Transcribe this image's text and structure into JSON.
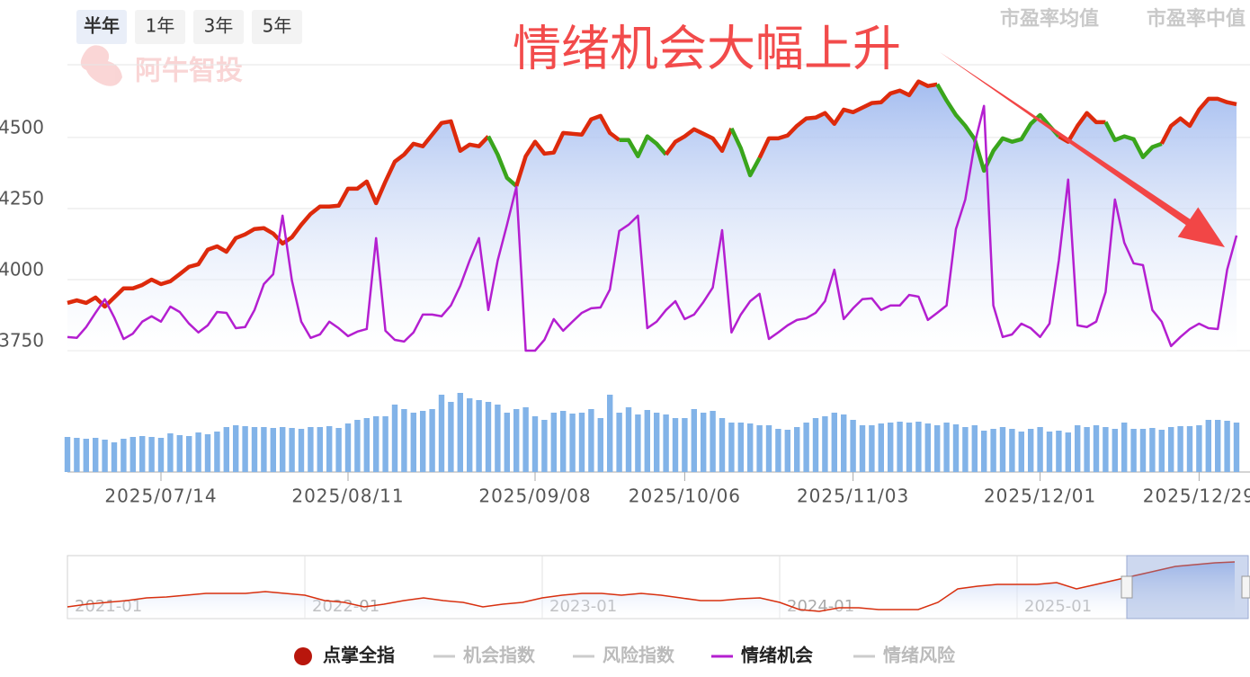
{
  "controls": {
    "periods": [
      "半年",
      "1年",
      "3年",
      "5年"
    ],
    "active_period": 0,
    "tabs": [
      "市盈率均值",
      "市盈率中值"
    ]
  },
  "watermark": "阿牛智投",
  "chart_data": [
    {
      "type": "line",
      "annotation": "情绪机会大幅上升",
      "ylim": [
        3750,
        4756
      ],
      "yticks": [
        3750,
        4000,
        4250,
        4500
      ],
      "grid": true,
      "categories": [
        null,
        null,
        null,
        null,
        null,
        null,
        null,
        null,
        null,
        null,
        "2025/07/14",
        null,
        null,
        null,
        null,
        null,
        null,
        null,
        null,
        null,
        null,
        null,
        null,
        null,
        null,
        null,
        null,
        null,
        null,
        null,
        "2025/08/11",
        null,
        null,
        null,
        null,
        null,
        null,
        null,
        null,
        null,
        null,
        null,
        null,
        null,
        null,
        null,
        null,
        null,
        null,
        null,
        "2025/09/08",
        null,
        null,
        null,
        null,
        null,
        null,
        null,
        null,
        null,
        null,
        null,
        null,
        null,
        null,
        null,
        "2025/10/06",
        null,
        null,
        null,
        null,
        null,
        null,
        null,
        null,
        null,
        null,
        null,
        null,
        null,
        null,
        null,
        null,
        null,
        "2025/11/03",
        null,
        null,
        null,
        null,
        null,
        null,
        null,
        null,
        null,
        null,
        null,
        null,
        null,
        null,
        null,
        null,
        null,
        null,
        null,
        "2025/12/01",
        null,
        null,
        null,
        null,
        null,
        null,
        null,
        null,
        null,
        null,
        null,
        null,
        null,
        null,
        null,
        null,
        "2025/12/29",
        null,
        null,
        null,
        null
      ],
      "series": [
        {
          "name": "点掌全指",
          "color": "#dd2a0c",
          "down_color": "#3aa51c",
          "fill": "#9fb9ef",
          "trend": [
            "u",
            "u",
            "u",
            "u",
            "u",
            "u",
            "u",
            "u",
            "u",
            "u",
            "u",
            "u",
            "u",
            "u",
            "u",
            "u",
            "u",
            "u",
            "u",
            "u",
            "u",
            "u",
            "u",
            "u",
            "u",
            "u",
            "u",
            "u",
            "u",
            "u",
            "u",
            "u",
            "u",
            "u",
            "u",
            "u",
            "u",
            "u",
            "u",
            "u",
            "u",
            "u",
            "u",
            "u",
            "u",
            "u",
            "d",
            "d",
            "d",
            "u",
            "u",
            "u",
            "u",
            "u",
            "u",
            "u",
            "u",
            "u",
            "u",
            "u",
            "d",
            "d",
            "d",
            "d",
            "d",
            "u",
            "u",
            "u",
            "u",
            "u",
            "u",
            "u",
            "d",
            "d",
            "d",
            "u",
            "u",
            "u",
            "u",
            "u",
            "u",
            "u",
            "u",
            "u",
            "u",
            "u",
            "u",
            "u",
            "u",
            "u",
            "u",
            "u",
            "u",
            "u",
            "d",
            "d",
            "d",
            "d",
            "d",
            "d",
            "d",
            "d",
            "d",
            "d",
            "d",
            "d",
            "d",
            "u",
            "u",
            "u",
            "u",
            "u",
            "d",
            "d",
            "d",
            "d",
            "d",
            "d",
            "u",
            "u",
            "u",
            "u",
            "u",
            "u",
            "u",
            "u"
          ],
          "values": [
            3918,
            3927,
            3918,
            3937,
            3905,
            3937,
            3969,
            3969,
            3981,
            4000,
            3984,
            3994,
            4019,
            4045,
            4054,
            4105,
            4117,
            4098,
            4146,
            4159,
            4178,
            4181,
            4162,
            4127,
            4149,
            4193,
            4231,
            4257,
            4257,
            4260,
            4320,
            4320,
            4345,
            4269,
            4345,
            4415,
            4440,
            4478,
            4469,
            4510,
            4551,
            4557,
            4453,
            4475,
            4469,
            4504,
            4440,
            4358,
            4329,
            4434,
            4485,
            4443,
            4447,
            4516,
            4513,
            4510,
            4564,
            4576,
            4516,
            4491,
            4491,
            4434,
            4504,
            4478,
            4440,
            4485,
            4504,
            4529,
            4513,
            4497,
            4453,
            4532,
            4462,
            4367,
            4428,
            4497,
            4497,
            4507,
            4541,
            4567,
            4570,
            4586,
            4548,
            4598,
            4589,
            4605,
            4621,
            4624,
            4655,
            4665,
            4649,
            4697,
            4681,
            4687,
            4630,
            4579,
            4541,
            4494,
            4383,
            4453,
            4497,
            4485,
            4494,
            4548,
            4579,
            4541,
            4504,
            4485,
            4541,
            4586,
            4554,
            4554,
            4491,
            4504,
            4494,
            4431,
            4466,
            4478,
            4541,
            4567,
            4541,
            4598,
            4636,
            4636,
            4624,
            4617
          ]
        },
        {
          "name": "机会指数",
          "color": "#cccccc",
          "visible": false
        },
        {
          "name": "风险指数",
          "color": "#cccccc",
          "visible": false
        },
        {
          "name": "情绪机会",
          "color": "#b41fd0",
          "values": [
            3798,
            3795,
            3833,
            3883,
            3931,
            3867,
            3791,
            3810,
            3852,
            3871,
            3852,
            3905,
            3886,
            3845,
            3814,
            3839,
            3886,
            3883,
            3829,
            3833,
            3893,
            3984,
            4019,
            4225,
            3997,
            3852,
            3795,
            3807,
            3852,
            3829,
            3801,
            3817,
            3826,
            4146,
            3820,
            3788,
            3782,
            3814,
            3877,
            3877,
            3871,
            3909,
            3978,
            4067,
            4146,
            3893,
            4067,
            4193,
            4326,
            3750,
            3750,
            3788,
            3861,
            3820,
            3852,
            3883,
            3899,
            3902,
            3965,
            4171,
            4193,
            4225,
            3829,
            3852,
            3893,
            3924,
            3861,
            3877,
            3921,
            3972,
            4174,
            3814,
            3877,
            3924,
            3950,
            3791,
            3814,
            3839,
            3858,
            3864,
            3883,
            3924,
            4035,
            3861,
            3899,
            3931,
            3934,
            3893,
            3909,
            3909,
            3946,
            3940,
            3858,
            3883,
            3909,
            4178,
            4282,
            4478,
            4611,
            3909,
            3798,
            3807,
            3845,
            3829,
            3798,
            3845,
            4067,
            4352,
            3839,
            3833,
            3852,
            3956,
            4282,
            4130,
            4057,
            4051,
            3893,
            3852,
            3766,
            3798,
            3826,
            3845,
            3829,
            3826,
            4035,
            4155
          ]
        },
        {
          "name": "情绪风险",
          "color": "#cccccc",
          "visible": false
        }
      ]
    },
    {
      "type": "bar",
      "color": "#82b3e8",
      "ylim": [
        0,
        100
      ],
      "values": [
        39,
        38,
        37,
        38,
        36,
        33,
        37,
        39,
        40,
        39,
        38,
        43,
        41,
        40,
        44,
        42,
        45,
        50,
        52,
        51,
        50,
        50,
        49,
        50,
        49,
        48,
        50,
        50,
        51,
        49,
        54,
        58,
        60,
        62,
        62,
        75,
        70,
        66,
        68,
        70,
        86,
        78,
        88,
        82,
        80,
        78,
        75,
        66,
        70,
        72,
        62,
        58,
        66,
        68,
        65,
        66,
        70,
        60,
        86,
        66,
        72,
        64,
        69,
        66,
        64,
        60,
        60,
        70,
        66,
        68,
        60,
        55,
        55,
        54,
        52,
        52,
        48,
        47,
        50,
        55,
        60,
        62,
        66,
        64,
        58,
        52,
        52,
        54,
        55,
        56,
        55,
        56,
        54,
        52,
        55,
        53,
        50,
        52,
        46,
        48,
        50,
        48,
        45,
        48,
        50,
        45,
        46,
        44,
        52,
        50,
        52,
        50,
        48,
        55,
        48,
        48,
        49,
        47,
        50,
        51,
        51,
        52,
        58,
        58,
        57,
        55
      ]
    },
    {
      "type": "area",
      "color": "#d8300f",
      "fill": "#aec4f2",
      "ylim": [
        2500,
        5000
      ],
      "categories": [
        "2021-01",
        null,
        null,
        null,
        null,
        null,
        null,
        null,
        null,
        null,
        null,
        null,
        "2022-01",
        null,
        null,
        null,
        null,
        null,
        null,
        null,
        null,
        null,
        null,
        null,
        "2023-01",
        null,
        null,
        null,
        null,
        null,
        null,
        null,
        null,
        null,
        null,
        null,
        "2024-01",
        null,
        null,
        null,
        null,
        null,
        null,
        null,
        null,
        null,
        null,
        null,
        "2025-01",
        null,
        null,
        null,
        null,
        null,
        null,
        null,
        null,
        null,
        null,
        null
      ],
      "values": [
        2964,
        3071,
        3143,
        3214,
        3321,
        3357,
        3428,
        3500,
        3500,
        3500,
        3571,
        3500,
        3428,
        3214,
        3143,
        2964,
        3071,
        3214,
        3321,
        3214,
        3143,
        2964,
        3071,
        3143,
        3321,
        3428,
        3500,
        3500,
        3428,
        3500,
        3428,
        3321,
        3214,
        3214,
        3285,
        3321,
        3143,
        2857,
        2786,
        2928,
        2928,
        2857,
        2857,
        2857,
        3143,
        3678,
        3785,
        3857,
        3857,
        3857,
        3928,
        3678,
        3857,
        4035,
        4214,
        4392,
        4571,
        4642,
        4713,
        4749
      ]
    }
  ]
}
